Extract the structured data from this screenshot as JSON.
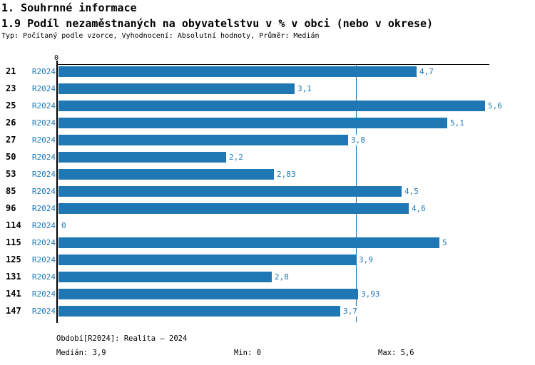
{
  "page": {
    "section_title": "1. Souhrnné informace",
    "chart_title": "1.9 Podíl nezaměstnaných na obyvatelstvu v % v obci (nebo v okrese)",
    "chart_subtitle": "Typ: Počítaný podle vzorce, Vyhodnocení: Absolutní hodnoty, Průměr: Medián"
  },
  "chart_data": {
    "type": "bar",
    "orientation": "horizontal",
    "title": "1.9 Podíl nezaměstnaných na obyvatelstvu v % v obci (nebo v okrese)",
    "categories": [
      "21",
      "23",
      "25",
      "26",
      "27",
      "50",
      "53",
      "85",
      "96",
      "114",
      "115",
      "125",
      "131",
      "141",
      "147"
    ],
    "series": [
      {
        "name": "R2024",
        "values": [
          4.7,
          3.1,
          5.6,
          5.1,
          3.8,
          2.2,
          2.83,
          4.5,
          4.6,
          0,
          5,
          3.9,
          2.8,
          3.93,
          3.7
        ],
        "value_labels": [
          "4,7",
          "3,1",
          "5,6",
          "5,1",
          "3,8",
          "2,2",
          "2,83",
          "4,5",
          "4,6",
          "0",
          "5",
          "3,9",
          "2,8",
          "3,93",
          "3,7"
        ]
      }
    ],
    "xlim": [
      0,
      5.66
    ],
    "x_zero_tick_label": "0",
    "median_line_value": 3.9,
    "grid": false,
    "legend": "none",
    "bar_color": "#1f77b4",
    "label_color": "#1f77b4",
    "axis_color": "#000000"
  },
  "footer": {
    "period": "Období[R2024]: Realita – 2024",
    "median": "Medián: 3,9",
    "min": "Min: 0",
    "max": "Max: 5,6"
  }
}
